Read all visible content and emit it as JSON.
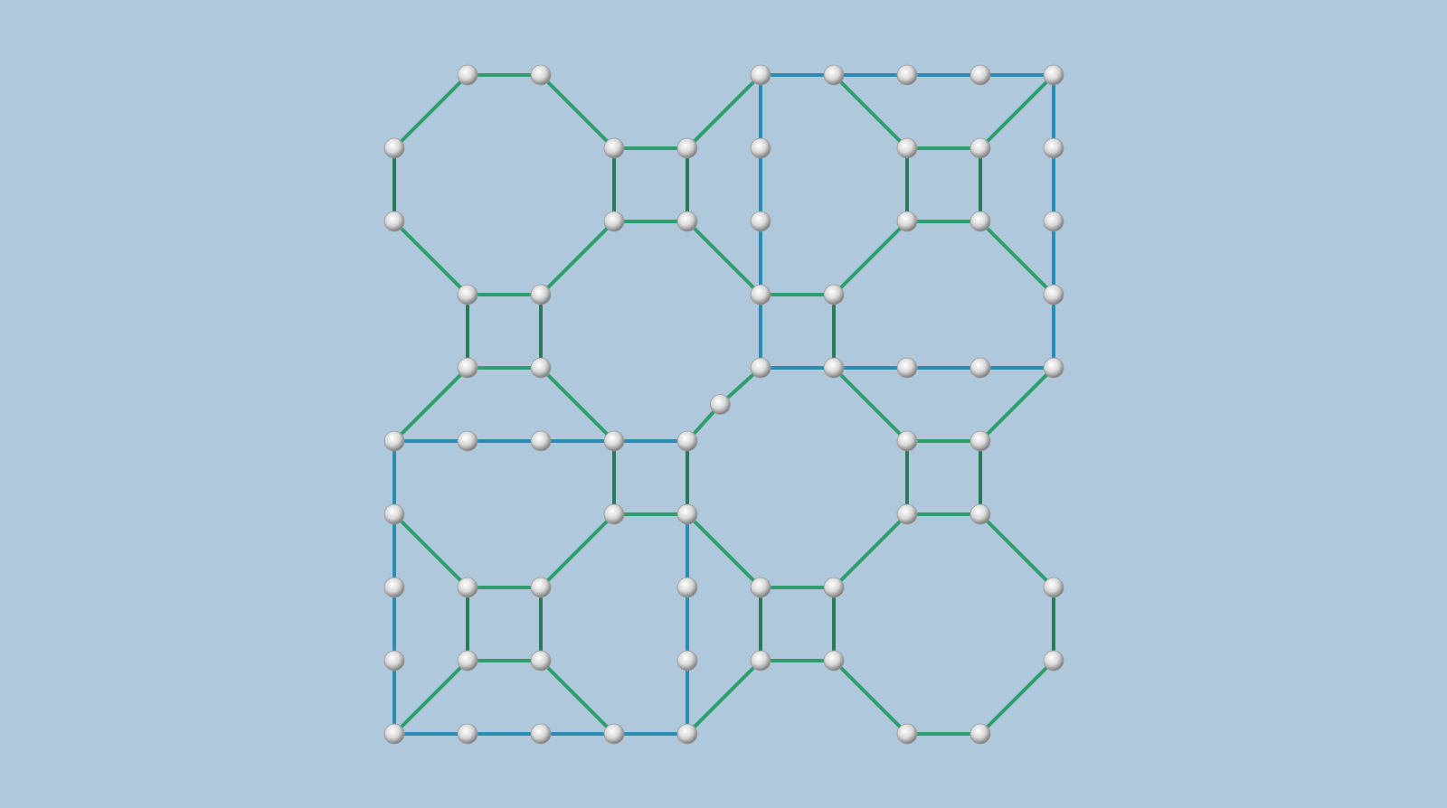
{
  "colors": {
    "background": "#b0c8dc",
    "green_edge": "#2e9e6e",
    "green_edge_light": "#3cbd82",
    "green_edge_dark": "#2a7a5a",
    "blue_edge": "#2a8cb0",
    "node_fill": "#e8e8e8",
    "node_shade": "#8a8a8a"
  },
  "graph": {
    "node_shape": "sphere-icon",
    "nodes": [
      [
        1,
        0
      ],
      [
        2,
        0
      ],
      [
        5,
        0
      ],
      [
        6,
        0
      ],
      [
        7,
        0
      ],
      [
        8,
        0
      ],
      [
        9,
        0
      ],
      [
        0,
        1
      ],
      [
        3,
        1
      ],
      [
        4,
        1
      ],
      [
        5,
        1
      ],
      [
        7,
        1
      ],
      [
        8,
        1
      ],
      [
        9,
        1
      ],
      [
        0,
        2
      ],
      [
        3,
        2
      ],
      [
        4,
        2
      ],
      [
        5,
        2
      ],
      [
        7,
        2
      ],
      [
        8,
        2
      ],
      [
        9,
        2
      ],
      [
        1,
        3
      ],
      [
        2,
        3
      ],
      [
        5,
        3
      ],
      [
        6,
        3
      ],
      [
        9,
        3
      ],
      [
        1,
        4
      ],
      [
        2,
        4
      ],
      [
        5,
        4
      ],
      [
        6,
        4
      ],
      [
        7,
        4
      ],
      [
        8,
        4
      ],
      [
        9,
        4
      ],
      [
        0,
        5
      ],
      [
        1,
        5
      ],
      [
        2,
        5
      ],
      [
        3,
        5
      ],
      [
        4,
        5
      ],
      [
        7,
        5
      ],
      [
        8,
        5
      ],
      [
        0,
        6
      ],
      [
        3,
        6
      ],
      [
        4,
        6
      ],
      [
        7,
        6
      ],
      [
        8,
        6
      ],
      [
        0,
        7
      ],
      [
        1,
        7
      ],
      [
        2,
        7
      ],
      [
        4,
        7
      ],
      [
        5,
        7
      ],
      [
        6,
        7
      ],
      [
        9,
        7
      ],
      [
        0,
        8
      ],
      [
        1,
        8
      ],
      [
        2,
        8
      ],
      [
        4,
        8
      ],
      [
        5,
        8
      ],
      [
        6,
        8
      ],
      [
        9,
        8
      ],
      [
        0,
        9
      ],
      [
        1,
        9
      ],
      [
        2,
        9
      ],
      [
        3,
        9
      ],
      [
        4,
        9
      ],
      [
        7,
        9
      ],
      [
        8,
        9
      ],
      [
        4.45,
        4.5
      ]
    ],
    "green_edges": [
      [
        [
          1,
          0
        ],
        [
          2,
          0
        ]
      ],
      [
        [
          2,
          0
        ],
        [
          3,
          1
        ]
      ],
      [
        [
          1,
          0
        ],
        [
          0,
          1
        ]
      ],
      [
        [
          0,
          1
        ],
        [
          0,
          2
        ]
      ],
      [
        [
          0,
          2
        ],
        [
          1,
          3
        ]
      ],
      [
        [
          2,
          3
        ],
        [
          3,
          2
        ]
      ],
      [
        [
          4,
          1
        ],
        [
          5,
          0
        ]
      ],
      [
        [
          3,
          1
        ],
        [
          4,
          1
        ]
      ],
      [
        [
          4,
          1
        ],
        [
          4,
          2
        ]
      ],
      [
        [
          4,
          2
        ],
        [
          3,
          2
        ]
      ],
      [
        [
          3,
          2
        ],
        [
          3,
          1
        ]
      ],
      [
        [
          4,
          2
        ],
        [
          5,
          3
        ]
      ],
      [
        [
          1,
          3
        ],
        [
          2,
          3
        ]
      ],
      [
        [
          2,
          3
        ],
        [
          2,
          4
        ]
      ],
      [
        [
          2,
          4
        ],
        [
          1,
          4
        ]
      ],
      [
        [
          1,
          4
        ],
        [
          1,
          3
        ]
      ],
      [
        [
          1,
          4
        ],
        [
          0,
          5
        ]
      ],
      [
        [
          2,
          4
        ],
        [
          3,
          5
        ]
      ],
      [
        [
          6,
          0
        ],
        [
          7,
          1
        ]
      ],
      [
        [
          9,
          0
        ],
        [
          8,
          1
        ]
      ],
      [
        [
          7,
          1
        ],
        [
          8,
          1
        ]
      ],
      [
        [
          8,
          1
        ],
        [
          8,
          2
        ]
      ],
      [
        [
          8,
          2
        ],
        [
          7,
          2
        ]
      ],
      [
        [
          7,
          2
        ],
        [
          7,
          1
        ]
      ],
      [
        [
          7,
          2
        ],
        [
          6,
          3
        ]
      ],
      [
        [
          8,
          2
        ],
        [
          9,
          3
        ]
      ],
      [
        [
          5,
          3
        ],
        [
          6,
          3
        ]
      ],
      [
        [
          6,
          3
        ],
        [
          6,
          4
        ]
      ],
      [
        [
          5,
          4
        ],
        [
          4.45,
          4.5
        ]
      ],
      [
        [
          4.45,
          4.5
        ],
        [
          4,
          5
        ]
      ],
      [
        [
          6,
          4
        ],
        [
          7,
          5
        ]
      ],
      [
        [
          9,
          4
        ],
        [
          8,
          5
        ]
      ],
      [
        [
          7,
          5
        ],
        [
          8,
          5
        ]
      ],
      [
        [
          8,
          5
        ],
        [
          8,
          6
        ]
      ],
      [
        [
          8,
          6
        ],
        [
          7,
          6
        ]
      ],
      [
        [
          7,
          6
        ],
        [
          7,
          5
        ]
      ],
      [
        [
          3,
          5
        ],
        [
          3,
          6
        ]
      ],
      [
        [
          4,
          5
        ],
        [
          4,
          6
        ]
      ],
      [
        [
          3,
          6
        ],
        [
          4,
          6
        ]
      ],
      [
        [
          0,
          6
        ],
        [
          1,
          7
        ]
      ],
      [
        [
          3,
          6
        ],
        [
          2,
          7
        ]
      ],
      [
        [
          1,
          7
        ],
        [
          2,
          7
        ]
      ],
      [
        [
          2,
          7
        ],
        [
          2,
          8
        ]
      ],
      [
        [
          2,
          8
        ],
        [
          1,
          8
        ]
      ],
      [
        [
          1,
          8
        ],
        [
          1,
          7
        ]
      ],
      [
        [
          1,
          8
        ],
        [
          0,
          9
        ]
      ],
      [
        [
          2,
          8
        ],
        [
          3,
          9
        ]
      ],
      [
        [
          4,
          6
        ],
        [
          5,
          7
        ]
      ],
      [
        [
          7,
          6
        ],
        [
          6,
          7
        ]
      ],
      [
        [
          5,
          7
        ],
        [
          6,
          7
        ]
      ],
      [
        [
          6,
          7
        ],
        [
          6,
          8
        ]
      ],
      [
        [
          6,
          8
        ],
        [
          5,
          8
        ]
      ],
      [
        [
          5,
          8
        ],
        [
          5,
          7
        ]
      ],
      [
        [
          5,
          8
        ],
        [
          4,
          9
        ]
      ],
      [
        [
          6,
          8
        ],
        [
          7,
          9
        ]
      ],
      [
        [
          7,
          9
        ],
        [
          8,
          9
        ]
      ],
      [
        [
          8,
          9
        ],
        [
          9,
          8
        ]
      ],
      [
        [
          9,
          8
        ],
        [
          9,
          7
        ]
      ],
      [
        [
          9,
          7
        ],
        [
          8,
          6
        ]
      ]
    ],
    "blue_edges": [
      [
        [
          5,
          0
        ],
        [
          6,
          0
        ]
      ],
      [
        [
          6,
          0
        ],
        [
          9,
          0
        ]
      ],
      [
        [
          5,
          0
        ],
        [
          5,
          3
        ]
      ],
      [
        [
          9,
          0
        ],
        [
          9,
          4
        ]
      ],
      [
        [
          5,
          3
        ],
        [
          5,
          4
        ]
      ],
      [
        [
          5,
          4
        ],
        [
          6,
          4
        ]
      ],
      [
        [
          6,
          4
        ],
        [
          9,
          4
        ]
      ],
      [
        [
          0,
          5
        ],
        [
          3,
          5
        ]
      ],
      [
        [
          3,
          5
        ],
        [
          4,
          5
        ]
      ],
      [
        [
          0,
          5
        ],
        [
          0,
          9
        ]
      ],
      [
        [
          4,
          6
        ],
        [
          4,
          9
        ]
      ],
      [
        [
          0,
          9
        ],
        [
          3,
          9
        ]
      ],
      [
        [
          3,
          9
        ],
        [
          4,
          9
        ]
      ]
    ]
  }
}
